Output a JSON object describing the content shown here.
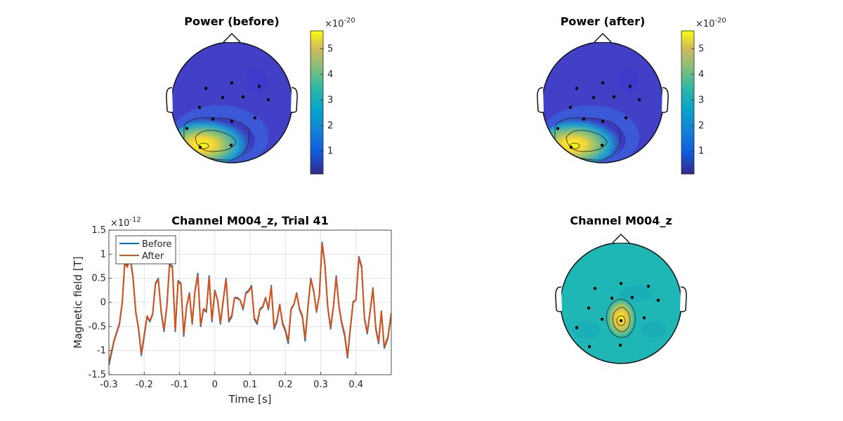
{
  "figure": {
    "topo_before": {
      "title": "Power (before)",
      "colorbar": {
        "exponent_base": "×10",
        "exponent": "-20",
        "ticks": [
          "1",
          "2",
          "3",
          "4",
          "5"
        ],
        "max": 5.7
      }
    },
    "topo_after": {
      "title": "Power (after)",
      "colorbar": {
        "exponent_base": "×10",
        "exponent": "-20",
        "ticks": [
          "1",
          "2",
          "3",
          "4",
          "5"
        ],
        "max": 5.7
      }
    },
    "topo_channel": {
      "title": "Channel M004_z"
    }
  },
  "chart_data": [
    {
      "type": "topoplot",
      "title": "Power (before)",
      "color_range": [
        0.1,
        5.7
      ],
      "colorbar_exponent": "x10^-20",
      "peak_region": "left-posterior",
      "sensor_count": 14
    },
    {
      "type": "topoplot",
      "title": "Power (after)",
      "color_range": [
        0.1,
        5.7
      ],
      "colorbar_exponent": "x10^-20",
      "peak_region": "left-posterior",
      "sensor_count": 14
    },
    {
      "type": "line",
      "title": "Channel M004_z, Trial 41",
      "xlabel": "Time [s]",
      "ylabel": "Magnetic field [T]",
      "y_exponent": "×10",
      "y_exponent_power": "-12",
      "xlim": [
        -0.3,
        0.5
      ],
      "ylim": [
        -1.5,
        1.5
      ],
      "xticks": [
        "-0.3",
        "-0.2",
        "-0.1",
        "0",
        "0.1",
        "0.2",
        "0.3",
        "0.4"
      ],
      "yticks": [
        "-1.5",
        "-1",
        "-0.5",
        "0",
        "0.5",
        "1",
        "1.5"
      ],
      "grid": true,
      "legend_position": "top-left",
      "series": [
        {
          "name": "Before",
          "color": "#0072BD",
          "x": [
            -0.3,
            -0.285,
            -0.27,
            -0.262,
            -0.255,
            -0.248,
            -0.24,
            -0.232,
            -0.224,
            -0.216,
            -0.208,
            -0.2,
            -0.192,
            -0.184,
            -0.176,
            -0.168,
            -0.16,
            -0.152,
            -0.144,
            -0.136,
            -0.128,
            -0.12,
            -0.112,
            -0.104,
            -0.096,
            -0.088,
            -0.08,
            -0.072,
            -0.064,
            -0.056,
            -0.048,
            -0.04,
            -0.032,
            -0.024,
            -0.016,
            -0.008,
            0.0,
            0.008,
            0.016,
            0.024,
            0.032,
            0.04,
            0.048,
            0.056,
            0.064,
            0.072,
            0.08,
            0.088,
            0.096,
            0.104,
            0.112,
            0.12,
            0.128,
            0.136,
            0.144,
            0.152,
            0.16,
            0.168,
            0.176,
            0.184,
            0.192,
            0.2,
            0.208,
            0.216,
            0.224,
            0.232,
            0.24,
            0.248,
            0.256,
            0.264,
            0.272,
            0.28,
            0.288,
            0.296,
            0.304,
            0.312,
            0.32,
            0.328,
            0.336,
            0.344,
            0.352,
            0.36,
            0.368,
            0.376,
            0.384,
            0.392,
            0.4,
            0.408,
            0.416,
            0.424,
            0.432,
            0.44,
            0.448,
            0.456,
            0.464,
            0.472,
            0.48,
            0.49,
            0.5
          ],
          "y": [
            -1.3,
            -0.8,
            -0.45,
            0.0,
            0.85,
            0.75,
            0.95,
            0.55,
            -0.2,
            -0.55,
            -1.1,
            -0.7,
            -0.3,
            -0.4,
            -0.25,
            0.4,
            0.5,
            -0.2,
            -0.6,
            -0.1,
            0.8,
            0.75,
            -0.6,
            0.45,
            0.4,
            -0.7,
            -0.1,
            0.2,
            -0.45,
            0.25,
            0.6,
            -0.5,
            -0.15,
            -0.2,
            0.55,
            -0.4,
            0.25,
            0.05,
            -0.45,
            0.05,
            0.5,
            -0.4,
            -0.3,
            0.1,
            0.1,
            0.05,
            -0.15,
            0.2,
            0.25,
            0.35,
            -0.35,
            -0.45,
            -0.15,
            -0.1,
            0.1,
            -0.15,
            0.35,
            -0.55,
            -0.4,
            -0.05,
            -0.45,
            -0.6,
            -0.85,
            -0.15,
            -0.05,
            0.2,
            -0.15,
            -0.3,
            -0.8,
            -0.1,
            0.5,
            0.25,
            -0.2,
            0.15,
            1.25,
            0.8,
            -0.1,
            -0.55,
            -0.1,
            0.55,
            -0.1,
            -0.45,
            -0.7,
            -1.15,
            -0.55,
            0.0,
            0.05,
            0.95,
            0.75,
            -0.35,
            -0.65,
            -0.2,
            0.3,
            -0.55,
            -0.85,
            -0.2,
            -0.95,
            -0.75,
            -0.25
          ]
        },
        {
          "name": "After",
          "color": "#D95319",
          "x": [
            -0.3,
            -0.285,
            -0.27,
            -0.262,
            -0.255,
            -0.248,
            -0.24,
            -0.232,
            -0.224,
            -0.216,
            -0.208,
            -0.2,
            -0.192,
            -0.184,
            -0.176,
            -0.168,
            -0.16,
            -0.152,
            -0.144,
            -0.136,
            -0.128,
            -0.12,
            -0.112,
            -0.104,
            -0.096,
            -0.088,
            -0.08,
            -0.072,
            -0.064,
            -0.056,
            -0.048,
            -0.04,
            -0.032,
            -0.024,
            -0.016,
            -0.008,
            0.0,
            0.008,
            0.016,
            0.024,
            0.032,
            0.04,
            0.048,
            0.056,
            0.064,
            0.072,
            0.08,
            0.088,
            0.096,
            0.104,
            0.112,
            0.12,
            0.128,
            0.136,
            0.144,
            0.152,
            0.16,
            0.168,
            0.176,
            0.184,
            0.192,
            0.2,
            0.208,
            0.216,
            0.224,
            0.232,
            0.24,
            0.248,
            0.256,
            0.264,
            0.272,
            0.28,
            0.288,
            0.296,
            0.304,
            0.312,
            0.32,
            0.328,
            0.336,
            0.344,
            0.352,
            0.36,
            0.368,
            0.376,
            0.384,
            0.392,
            0.4,
            0.408,
            0.416,
            0.424,
            0.432,
            0.44,
            0.448,
            0.456,
            0.464,
            0.472,
            0.48,
            0.49,
            0.5
          ],
          "y": [
            -1.25,
            -0.78,
            -0.43,
            0.02,
            0.82,
            0.73,
            0.92,
            0.53,
            -0.18,
            -0.53,
            -1.06,
            -0.67,
            -0.28,
            -0.38,
            -0.23,
            0.38,
            0.48,
            -0.18,
            -0.57,
            -0.08,
            0.78,
            0.72,
            -0.57,
            0.43,
            0.38,
            -0.66,
            -0.08,
            0.18,
            -0.42,
            0.23,
            0.56,
            -0.47,
            -0.13,
            -0.18,
            0.52,
            -0.37,
            0.23,
            0.05,
            -0.42,
            0.05,
            0.47,
            -0.37,
            -0.27,
            0.1,
            0.08,
            0.05,
            -0.13,
            0.18,
            0.23,
            0.33,
            -0.32,
            -0.42,
            -0.13,
            -0.08,
            0.1,
            -0.13,
            0.33,
            -0.52,
            -0.37,
            -0.04,
            -0.42,
            -0.57,
            -0.8,
            -0.13,
            -0.04,
            0.18,
            -0.13,
            -0.27,
            -0.75,
            -0.08,
            0.48,
            0.23,
            -0.18,
            0.13,
            1.22,
            0.78,
            -0.08,
            -0.52,
            -0.08,
            0.52,
            -0.08,
            -0.42,
            -0.66,
            -1.12,
            -0.52,
            0.02,
            0.05,
            0.92,
            0.72,
            -0.32,
            -0.62,
            -0.18,
            0.28,
            -0.52,
            -0.82,
            -0.18,
            -0.92,
            -0.72,
            -0.22
          ]
        }
      ]
    },
    {
      "type": "topoplot",
      "title": "Channel M004_z",
      "peak_region": "center",
      "sensor_count": 14
    }
  ]
}
